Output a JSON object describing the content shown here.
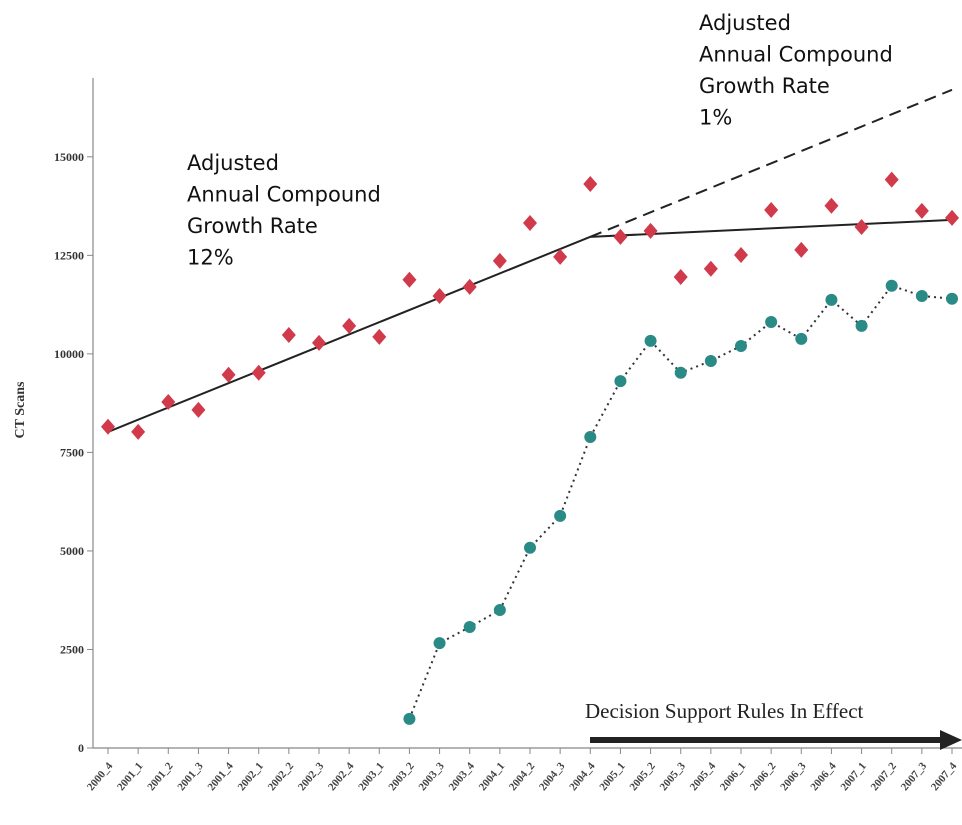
{
  "chart_data": {
    "type": "scatter-trend",
    "y_label": "CT Scans",
    "categories": [
      "2000_4",
      "2001_1",
      "2001_2",
      "2001_3",
      "2001_4",
      "2002_1",
      "2002_2",
      "2002_3",
      "2002_4",
      "2003_1",
      "2003_2",
      "2003_3",
      "2003_4",
      "2004_1",
      "2004_2",
      "2004_3",
      "2004_4",
      "2005_1",
      "2005_2",
      "2005_3",
      "2005_4",
      "2006_1",
      "2006_2",
      "2006_3",
      "2006_4",
      "2007_1",
      "2007_2",
      "2007_3",
      "2007_4"
    ],
    "series": [
      {
        "color": "#d03a4a",
        "marker": "diamond",
        "values": [
          8150,
          8020,
          8780,
          8580,
          9470,
          9520,
          10480,
          10280,
          10710,
          10430,
          11880,
          11470,
          11700,
          12360,
          13320,
          12460,
          14310,
          12970,
          13120,
          11950,
          12160,
          12510,
          13650,
          12640,
          13760,
          13220,
          14420,
          13630,
          13450
        ]
      },
      {
        "color": "#2a8a86",
        "marker": "circle",
        "line": "dotted",
        "values": [
          null,
          null,
          null,
          null,
          null,
          null,
          null,
          null,
          null,
          null,
          740,
          2660,
          3070,
          3500,
          5080,
          5890,
          7890,
          9310,
          10330,
          9520,
          9820,
          10200,
          10810,
          10380,
          11370,
          10710,
          11730,
          11470,
          11400
        ]
      }
    ],
    "trend_lines": [
      {
        "style": "solid",
        "from": [
          "2000_4",
          8020
        ],
        "to": [
          "2004_4",
          12970
        ]
      },
      {
        "style": "solid",
        "from": [
          "2004_4",
          12970
        ],
        "to": [
          "2007_4",
          13400
        ]
      },
      {
        "style": "dashed",
        "from": [
          "2004_4",
          12970
        ],
        "to": [
          "2007_4",
          16700
        ]
      }
    ],
    "annotations": [
      {
        "lines": [
          "Adjusted",
          "Annual Compound",
          "Growth Rate",
          "12%"
        ]
      },
      {
        "lines": [
          "Adjusted",
          "Annual Compound",
          "Growth Rate",
          "1%"
        ]
      }
    ],
    "arrow_label": "Decision Support Rules In Effect",
    "ylim": [
      0,
      17000
    ],
    "yticks": [
      0,
      2500,
      5000,
      7500,
      10000,
      12500,
      15000
    ]
  }
}
